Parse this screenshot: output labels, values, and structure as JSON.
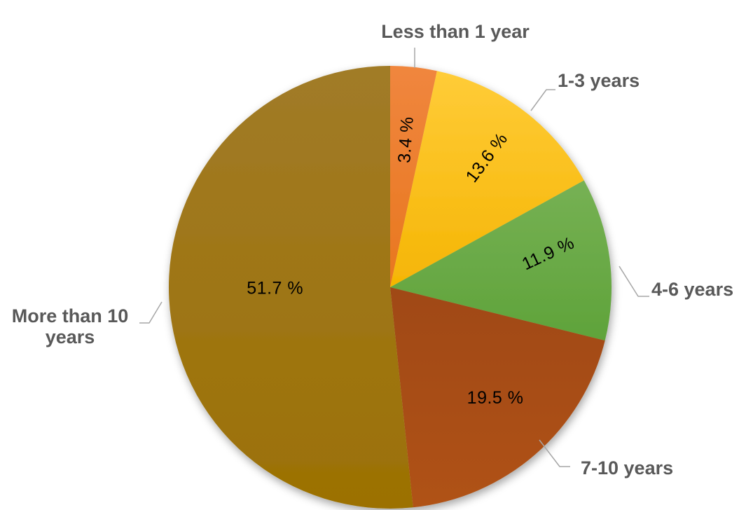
{
  "background_color": "#FFFFFF",
  "chart_data": {
    "type": "pie",
    "title": "",
    "legend": "none",
    "unit": "%",
    "start_angle_deg": 0,
    "direction": "clockwise",
    "categories": [
      "Less than 1 year",
      "1-3 years",
      "4-6 years",
      "7-10 years",
      "More than 10 years"
    ],
    "values": [
      3.4,
      13.6,
      11.9,
      19.5,
      51.7
    ],
    "data_labels": [
      "3.4 %",
      "13.6 %",
      "11.9 %",
      "19.5 %",
      "51.7 %"
    ],
    "slice_colors": [
      {
        "from": "#F0863E",
        "to": "#E8771F"
      },
      {
        "from": "#FFCC38",
        "to": "#F5B504"
      },
      {
        "from": "#76B154",
        "to": "#5FA33A"
      },
      {
        "from": "#A04912",
        "to": "#B05213"
      },
      {
        "from": "#A17B28",
        "to": "#9C7103"
      }
    ],
    "category_label_color": "#595959",
    "data_label_color": "#000000",
    "leader_line_color": "#A6A6A6"
  }
}
